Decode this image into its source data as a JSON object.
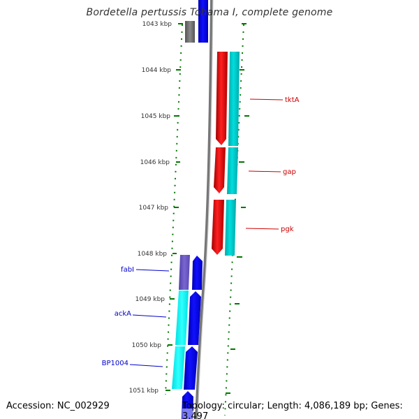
{
  "map": {
    "title": "Bordetella pertussis Tohama I, complete genome",
    "accession_text": "Accession: NC_002929",
    "summary_text": "Topology: circular; Length: 4,086,189 bp; Genes: 3,497",
    "ticks": [
      "1043 kbp",
      "1044 kbp",
      "1045 kbp",
      "1046 kbp",
      "1047 kbp",
      "1048 kbp",
      "1049 kbp",
      "1050 kbp",
      "1051 kbp"
    ],
    "gene_labels": [
      {
        "name": "tktA",
        "color": "#cc0000"
      },
      {
        "name": "gap",
        "color": "#cc0000"
      },
      {
        "name": "pgk",
        "color": "#cc0000"
      },
      {
        "name": "fabI",
        "color": "#0000cc"
      },
      {
        "name": "ackA",
        "color": "#0000cc"
      },
      {
        "name": "BP1004",
        "color": "#0000cc"
      }
    ],
    "colors": {
      "backbone": "#888888",
      "reverse_cds": "#ff0000",
      "forward_cds": "#0000ff",
      "cog_cyan": "#00c8c8",
      "cog_bright_cyan": "#00ffff",
      "cog_purple": "#6650c0",
      "cog_gray": "#777777",
      "tick_marks": "#007700",
      "text": "#333333"
    }
  }
}
